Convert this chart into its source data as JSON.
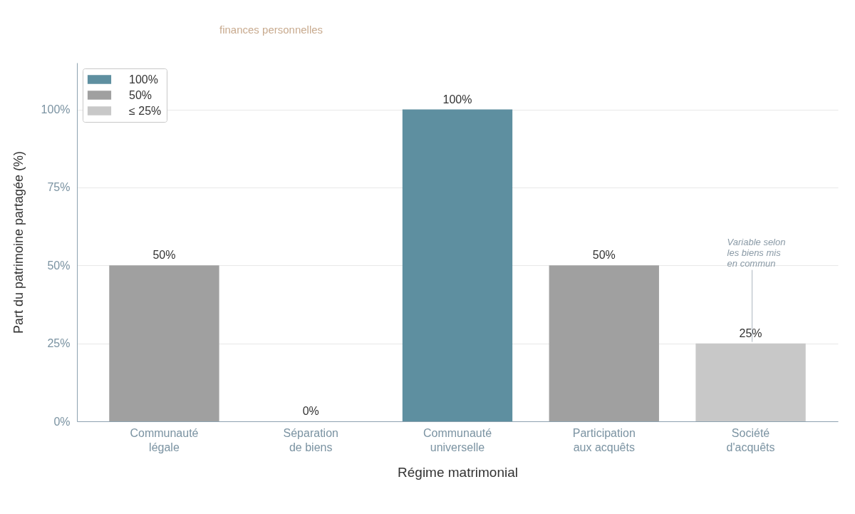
{
  "chart_data": {
    "type": "bar",
    "subtitle": "finances personnelles",
    "xlabel": "Régime matrimonial",
    "ylabel": "Part du patrimoine partagée (%)",
    "categories": [
      "Communauté légale",
      "Séparation de biens",
      "Communauté universelle",
      "Participation aux acquêts",
      "Société d'acquêts"
    ],
    "series": [
      {
        "name": "100%",
        "color": "#5e8fa0",
        "values": [
          null,
          null,
          100,
          null,
          null
        ],
        "value_labels": [
          null,
          null,
          "100%",
          null,
          null
        ]
      },
      {
        "name": "50%",
        "color": "#a0a0a0",
        "values": [
          50,
          null,
          null,
          50,
          null
        ],
        "value_labels": [
          "50%",
          null,
          null,
          "50%",
          null
        ]
      },
      {
        "name": "≤ 25%",
        "color": "#c8c8c8",
        "values": [
          null,
          0,
          null,
          null,
          25
        ],
        "value_labels": [
          null,
          "0%",
          null,
          null,
          "25%"
        ]
      }
    ],
    "stacked": true,
    "ylim": [
      0,
      115
    ],
    "yticks": [
      {
        "value": 0,
        "label": "0%"
      },
      {
        "value": 25,
        "label": "25%"
      },
      {
        "value": 50,
        "label": "50%"
      },
      {
        "value": 75,
        "label": "75%"
      },
      {
        "value": 100,
        "label": "100%"
      }
    ],
    "grid": "y",
    "legend": "top left",
    "annotations": [
      {
        "text": "Variable selon\nles biens mis\nen commun",
        "x": "Société d'acquêts",
        "y": 25
      }
    ]
  }
}
